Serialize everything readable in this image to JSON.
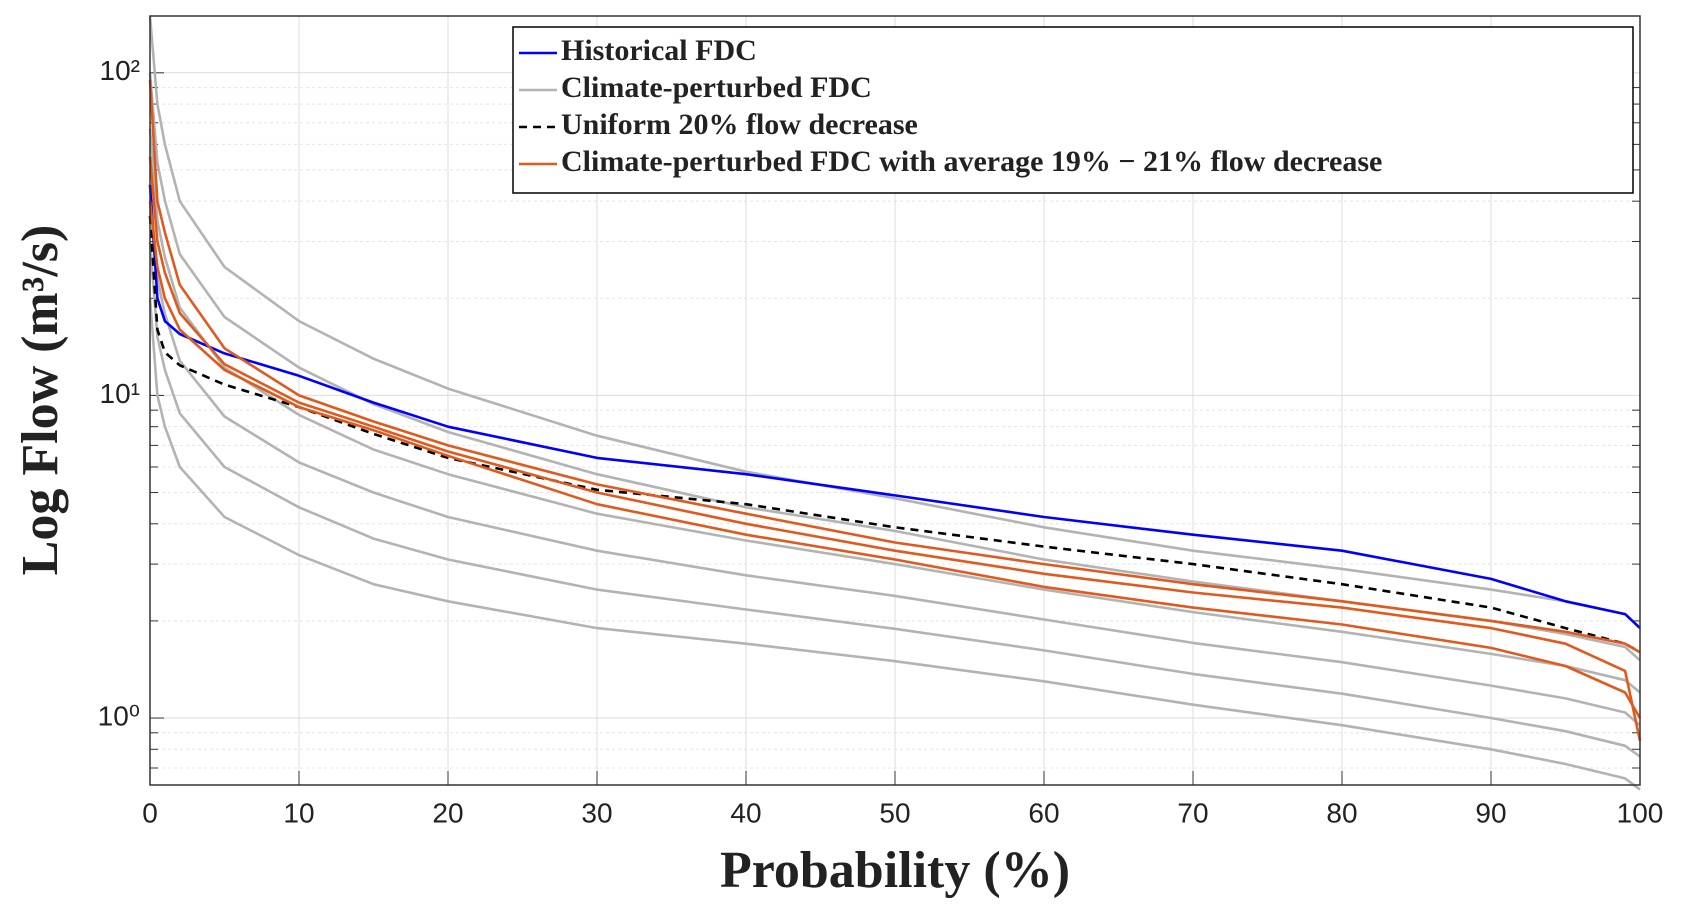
{
  "chart_data": {
    "type": "line",
    "x_label": "Probability (%)",
    "y_label": "Log Flow (m³/s)",
    "yscale": "log",
    "grid": true,
    "legend": "top-right",
    "xlim": [
      0,
      100
    ],
    "xticks": [
      0,
      10,
      20,
      30,
      40,
      50,
      60,
      70,
      80,
      90,
      100
    ],
    "ylim": [
      0.62,
      150
    ],
    "yticks": [
      {
        "value": 1,
        "label": "10⁰"
      },
      {
        "value": 10,
        "label": "10¹"
      },
      {
        "value": 100,
        "label": "10²"
      }
    ],
    "yminorticks": [
      0.7,
      0.8,
      0.9,
      2,
      3,
      4,
      5,
      6,
      7,
      8,
      9,
      20,
      30,
      40,
      50,
      60,
      70,
      80,
      90
    ],
    "x": [
      0,
      0.5,
      1,
      2,
      5,
      10,
      15,
      20,
      30,
      40,
      50,
      60,
      70,
      80,
      90,
      95,
      99,
      100
    ],
    "series": [
      {
        "name": "Historical FDC",
        "color": "#0000ff",
        "dash": "solid",
        "values": [
          45,
          20,
          17,
          15.5,
          13.5,
          11.5,
          9.5,
          8,
          6.4,
          5.7,
          4.9,
          4.2,
          3.7,
          3.3,
          2.7,
          2.3,
          2.1,
          1.9
        ]
      },
      {
        "name": "Climate-perturbed FDC",
        "color": "#b3b3b3",
        "dash": "solid",
        "values": [
          [
            150,
            80,
            60,
            40,
            25,
            17,
            13,
            10.5,
            7.5,
            5.8,
            4.8,
            3.9,
            3.3,
            2.9,
            2.5,
            2.3,
            2.1,
            1.9
          ],
          [
            100,
            52.7,
            40.1,
            27.4,
            17.5,
            12.2,
            9.4,
            7.7,
            5.7,
            4.5,
            3.8,
            3.1,
            2.65,
            2.3,
            2.0,
            1.82,
            1.66,
            1.51
          ],
          [
            67,
            34.8,
            26.8,
            18.7,
            12.2,
            8.7,
            6.8,
            5.7,
            4.3,
            3.55,
            3.0,
            2.5,
            2.13,
            1.85,
            1.58,
            1.45,
            1.31,
            1.2
          ],
          [
            44.8,
            23,
            17.9,
            12.8,
            8.6,
            6.2,
            5.0,
            4.2,
            3.3,
            2.77,
            2.39,
            2.02,
            1.71,
            1.49,
            1.26,
            1.15,
            1.04,
            0.95
          ],
          [
            29.9,
            15.2,
            12,
            8.8,
            6,
            4.5,
            3.6,
            3.1,
            2.5,
            2.17,
            1.89,
            1.62,
            1.37,
            1.19,
            1.0,
            0.91,
            0.82,
            0.76
          ],
          [
            20,
            10,
            8,
            6,
            4.2,
            3.2,
            2.6,
            2.3,
            1.9,
            1.7,
            1.5,
            1.3,
            1.1,
            0.95,
            0.8,
            0.72,
            0.65,
            0.6
          ]
        ]
      },
      {
        "name": "Uniform 20% flow decrease",
        "color": "#000000",
        "dash": "dashed",
        "values": [
          36,
          16,
          13.6,
          12.4,
          10.8,
          9.2,
          7.6,
          6.4,
          5.1,
          4.6,
          3.9,
          3.4,
          3.0,
          2.6,
          2.2,
          1.9,
          1.7,
          1.6
        ]
      },
      {
        "name": "Climate-perturbed FDC with average 19% − 21% flow decrease",
        "color": "#e05a1e",
        "dash": "solid",
        "values": [
          [
            95,
            40,
            32,
            22,
            14,
            10,
            8.3,
            7,
            5.3,
            4.3,
            3.5,
            3.0,
            2.6,
            2.3,
            2.0,
            1.85,
            1.7,
            1.6
          ],
          [
            55,
            30,
            24,
            18,
            12.5,
            9.5,
            8,
            6.7,
            5.0,
            4.0,
            3.3,
            2.8,
            2.45,
            2.2,
            1.9,
            1.7,
            1.4,
            0.85
          ],
          [
            40,
            25,
            20,
            16,
            12,
            9.2,
            7.8,
            6.5,
            4.6,
            3.7,
            3.1,
            2.55,
            2.2,
            1.95,
            1.65,
            1.45,
            1.2,
            1.0
          ]
        ]
      }
    ]
  }
}
